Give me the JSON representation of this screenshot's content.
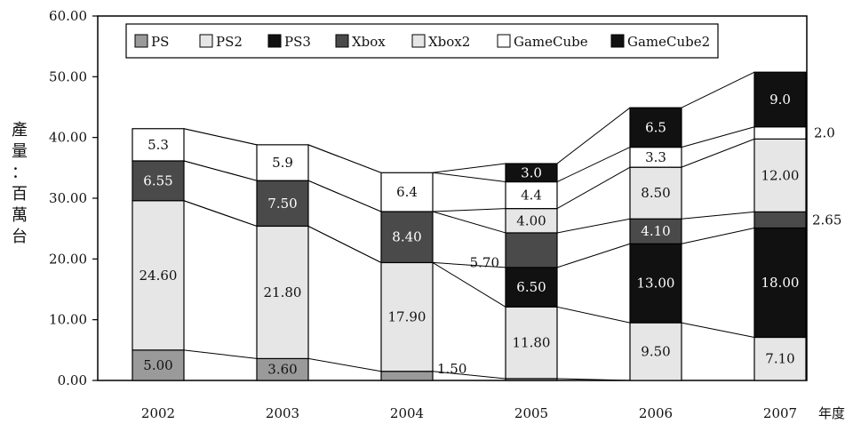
{
  "chart_data": {
    "type": "bar",
    "stacked": true,
    "categories": [
      "2002",
      "2003",
      "2004",
      "2005",
      "2006",
      "2007"
    ],
    "series": [
      {
        "name": "PS",
        "values": [
          5.0,
          3.6,
          1.5,
          0.3,
          0,
          0
        ],
        "color": "#9a9a9a"
      },
      {
        "name": "PS2",
        "values": [
          24.6,
          21.8,
          17.9,
          11.8,
          9.5,
          7.1
        ],
        "color": "#e6e6e6"
      },
      {
        "name": "PS3",
        "values": [
          0,
          0,
          0,
          6.5,
          13.0,
          18.0
        ],
        "color": "#111111"
      },
      {
        "name": "Xbox",
        "values": [
          6.55,
          7.5,
          8.4,
          5.7,
          4.1,
          2.65
        ],
        "color": "#4a4a4a"
      },
      {
        "name": "Xbox2",
        "values": [
          0,
          0,
          0,
          4.0,
          8.5,
          12.0
        ],
        "color": "#e6e6e6"
      },
      {
        "name": "GameCube",
        "values": [
          5.3,
          5.9,
          6.4,
          4.4,
          3.3,
          2.0
        ],
        "color": "#ffffff"
      },
      {
        "name": "GameCube2",
        "values": [
          0,
          0,
          0,
          3.0,
          6.5,
          9.0
        ],
        "color": "#111111"
      }
    ],
    "labels": [
      [
        "5.00",
        "24.60",
        "",
        "6.55",
        "",
        "5.3",
        ""
      ],
      [
        "3.60",
        "21.80",
        "",
        "7.50",
        "",
        "5.9",
        ""
      ],
      [
        "1.50",
        "17.90",
        "",
        "8.40",
        "",
        "6.4",
        ""
      ],
      [
        "",
        "11.80",
        "6.50",
        "5.70",
        "4.00",
        "4.4",
        "3.0"
      ],
      [
        "",
        "9.50",
        "13.00",
        "4.10",
        "8.50",
        "3.3",
        "6.5"
      ],
      [
        "",
        "7.10",
        "18.00",
        "2.65",
        "12.00",
        "2.0",
        "9.0"
      ]
    ],
    "yticks": [
      "0.00",
      "10.00",
      "20.00",
      "30.00",
      "40.00",
      "50.00",
      "60.00"
    ],
    "ylim": [
      0,
      60
    ],
    "ylabel": "產量：百萬台",
    "xlabel": "年度",
    "legend_position": "top-left",
    "grid": false
  }
}
